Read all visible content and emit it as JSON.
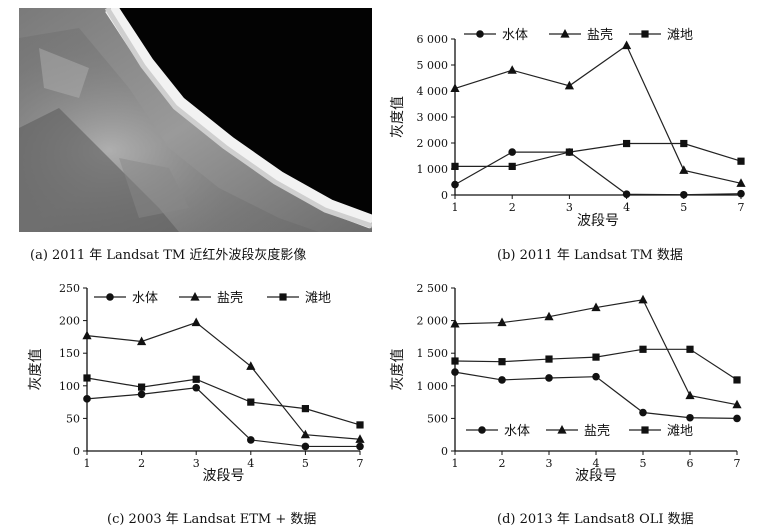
{
  "captions": {
    "a": "(a) 2011 年 Landsat TM 近红外波段灰度影像",
    "b": "(b) 2011 年 Landsat TM 数据",
    "c": "(c) 2003 年 Landsat ETM + 数据",
    "d": "(d) 2013 年 Landsat8 OLI 数据"
  },
  "chart_data": [
    {
      "panel": "b",
      "type": "line",
      "xlabel": "波段号",
      "ylabel": "灰度值",
      "x": [
        "1",
        "2",
        "3",
        "4",
        "5",
        "7"
      ],
      "yticks": [
        "0",
        "1 000",
        "2 000",
        "3 000",
        "4 000",
        "5 000",
        "6 000"
      ],
      "ylim": [
        0,
        6000
      ],
      "series": [
        {
          "name": "水体",
          "marker": "circle",
          "values": [
            400,
            1650,
            1650,
            30,
            10,
            50
          ]
        },
        {
          "name": "盐壳",
          "marker": "triangle",
          "values": [
            4100,
            4800,
            4200,
            5750,
            950,
            450
          ]
        },
        {
          "name": "滩地",
          "marker": "square",
          "values": [
            1100,
            1100,
            1650,
            1980,
            1980,
            1300
          ]
        }
      ],
      "legend": "top"
    },
    {
      "panel": "c",
      "type": "line",
      "xlabel": "波段号",
      "ylabel": "灰度值",
      "x": [
        "1",
        "2",
        "3",
        "4",
        "5",
        "7"
      ],
      "yticks": [
        "0",
        "50",
        "100",
        "150",
        "200",
        "250"
      ],
      "ylim": [
        0,
        250
      ],
      "series": [
        {
          "name": "水体",
          "marker": "circle",
          "values": [
            80,
            87,
            97,
            17,
            7,
            7
          ]
        },
        {
          "name": "盐壳",
          "marker": "triangle",
          "values": [
            177,
            168,
            197,
            130,
            25,
            18
          ]
        },
        {
          "name": "滩地",
          "marker": "square",
          "values": [
            112,
            98,
            110,
            75,
            65,
            40
          ]
        }
      ],
      "legend": "top"
    },
    {
      "panel": "d",
      "type": "line",
      "xlabel": "波段号",
      "ylabel": "灰度值",
      "x": [
        "1",
        "2",
        "3",
        "4",
        "5",
        "6",
        "7"
      ],
      "yticks": [
        "0",
        "500",
        "1 000",
        "1 500",
        "2 000",
        "2 500"
      ],
      "ylim": [
        0,
        2500
      ],
      "series": [
        {
          "name": "水体",
          "marker": "circle",
          "values": [
            1210,
            1090,
            1120,
            1140,
            590,
            510,
            500
          ]
        },
        {
          "name": "盐壳",
          "marker": "triangle",
          "values": [
            1950,
            1970,
            2060,
            2200,
            2320,
            850,
            710
          ]
        },
        {
          "name": "滩地",
          "marker": "square",
          "values": [
            1380,
            1370,
            1410,
            1440,
            1560,
            1560,
            1090
          ]
        }
      ],
      "legend": "bottom"
    }
  ]
}
